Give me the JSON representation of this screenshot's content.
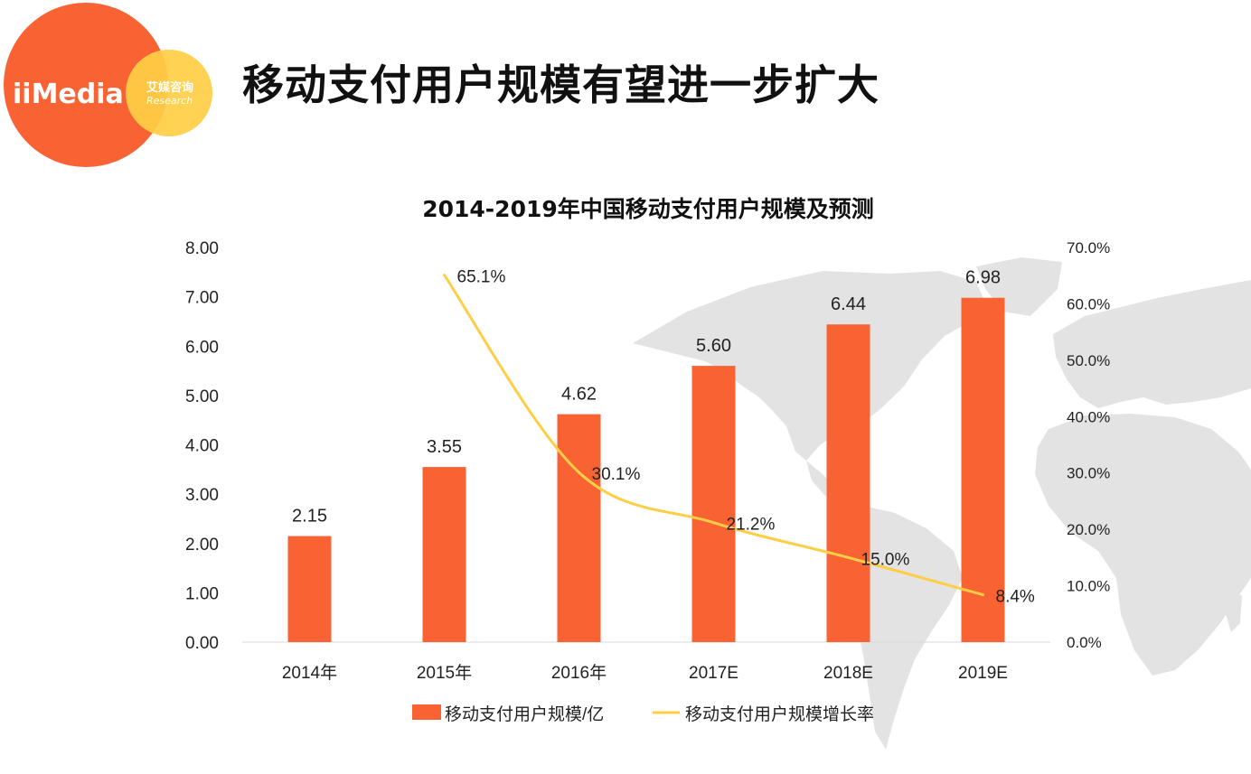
{
  "logo": {
    "brand": "iiMedia",
    "cn_name": "艾媒咨询",
    "en_name": "Research"
  },
  "slide_title": "移动支付用户规模有望进一步扩大",
  "colors": {
    "bar": "#F96334",
    "line": "#FFCE45",
    "logo_orange": "#F96334",
    "logo_yellow": "#FFCE45",
    "map": "#E3E3E3"
  },
  "chart_data": {
    "type": "bar",
    "title": "2014-2019年中国移动支付用户规模及预测",
    "categories": [
      "2014年",
      "2015年",
      "2016年",
      "2017E",
      "2018E",
      "2019E"
    ],
    "series": [
      {
        "name": "移动支付用户规模/亿",
        "type": "bar",
        "values": [
          2.15,
          3.55,
          4.62,
          5.6,
          6.44,
          6.98
        ],
        "labels": [
          "2.15",
          "3.55",
          "4.62",
          "5.60",
          "6.44",
          "6.98"
        ],
        "axis": "left"
      },
      {
        "name": "移动支付用户规模增长率",
        "type": "line",
        "values": [
          null,
          65.1,
          30.1,
          21.2,
          15.0,
          8.4
        ],
        "labels": [
          null,
          "65.1%",
          "30.1%",
          "21.2%",
          "15.0%",
          "8.4%"
        ],
        "axis": "right"
      }
    ],
    "y_left": {
      "min": 0,
      "max": 8,
      "ticks": [
        "0.00",
        "1.00",
        "2.00",
        "3.00",
        "4.00",
        "5.00",
        "6.00",
        "7.00",
        "8.00"
      ]
    },
    "y_right": {
      "min": 0,
      "max": 70,
      "ticks": [
        "0.0%",
        "10.0%",
        "20.0%",
        "30.0%",
        "40.0%",
        "50.0%",
        "60.0%",
        "70.0%"
      ]
    },
    "legend": "bottom"
  }
}
